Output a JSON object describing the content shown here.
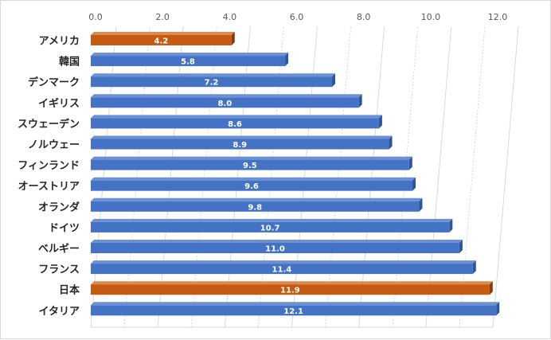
{
  "chart_data": {
    "type": "bar",
    "orientation": "horizontal",
    "title": "",
    "xlabel": "",
    "ylabel": "",
    "xlim": [
      0,
      12
    ],
    "x_ticks": [
      "0.0",
      "2.0",
      "4.0",
      "6.0",
      "8.0",
      "10.0",
      "12.0"
    ],
    "x_tick_values": [
      0,
      2,
      4,
      6,
      8,
      10,
      12
    ],
    "x_axis_position": "top",
    "grid": true,
    "legend": "none",
    "categories": [
      "アメリカ",
      "韓国",
      "デンマーク",
      "イギリス",
      "スウェーデン",
      "ノルウェー",
      "フィンランド",
      "オーストリア",
      "オランダ",
      "ドイツ",
      "ベルギー",
      "フランス",
      "日本",
      "イタリア"
    ],
    "values": [
      4.2,
      5.8,
      7.2,
      8.0,
      8.6,
      8.9,
      9.5,
      9.6,
      9.8,
      10.7,
      11.0,
      11.4,
      11.9,
      12.1
    ],
    "value_labels": [
      "4.2",
      "5.8",
      "7.2",
      "8.0",
      "8.6",
      "8.9",
      "9.5",
      "9.6",
      "9.8",
      "10.7",
      "11.0",
      "11.4",
      "11.9",
      "12.1"
    ],
    "highlighted": [
      true,
      false,
      false,
      false,
      false,
      false,
      false,
      false,
      false,
      false,
      false,
      false,
      true,
      false
    ],
    "colors": {
      "default_bar": "#4472c4",
      "default_bar_top": "#6b90d4",
      "default_bar_side": "#2f5597",
      "highlight_bar": "#c55a11",
      "highlight_bar_top": "#dd8a50",
      "highlight_bar_side": "#843c0c",
      "gridline": "#d9d9d9"
    }
  }
}
